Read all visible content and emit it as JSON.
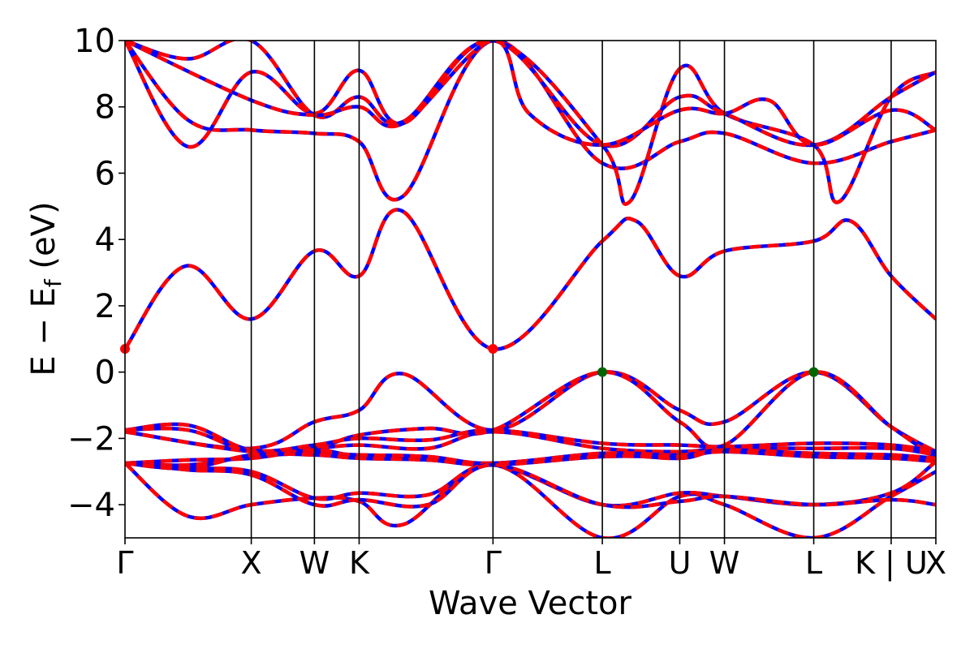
{
  "chart_data": {
    "type": "line",
    "title": "",
    "xlabel": "Wave Vector",
    "ylabel": "E − E",
    "ylabel_sub": "f",
    "ylabel_unit": " (eV)",
    "ylim": [
      -5,
      10
    ],
    "y_ticks": [
      {
        "value": 10,
        "label": "10"
      },
      {
        "value": 8,
        "label": "8"
      },
      {
        "value": 6,
        "label": "6"
      },
      {
        "value": 4,
        "label": "4"
      },
      {
        "value": 2,
        "label": "2"
      },
      {
        "value": 0,
        "label": "0"
      },
      {
        "value": -2,
        "label": "−2"
      },
      {
        "value": -4,
        "label": "−4"
      }
    ],
    "k_path": [
      {
        "label": "Γ",
        "k": 0.0
      },
      {
        "label": "X",
        "k": 1.0
      },
      {
        "label": "W",
        "k": 1.5
      },
      {
        "label": "K",
        "k": 1.854
      },
      {
        "label": "Γ",
        "k": 2.914
      },
      {
        "label": "L",
        "k": 3.78
      },
      {
        "label": "U",
        "k": 4.393
      },
      {
        "label": "W",
        "k": 4.747
      },
      {
        "label": "L",
        "k": 5.454
      },
      {
        "label": "K | U",
        "k": 6.067
      },
      {
        "label": "X",
        "k": 6.421
      }
    ],
    "xlim": [
      0,
      6.421
    ],
    "colors": {
      "band_outer": "#ff0000",
      "band_inner": "#0000ff",
      "vbm": "#006400",
      "cbm": "#ff0000",
      "kline": "#000000"
    },
    "extrema": [
      {
        "kind": "cbm",
        "k": 0.0,
        "energy": 0.7
      },
      {
        "kind": "cbm",
        "k": 2.914,
        "energy": 0.7
      },
      {
        "kind": "vbm",
        "k": 3.78,
        "energy": 0.0
      },
      {
        "kind": "vbm",
        "k": 5.454,
        "energy": 0.0
      }
    ],
    "series": [
      {
        "k": [
          0,
          0.48,
          1.0,
          1.5,
          1.854,
          2.2,
          2.914,
          3.78,
          4.05,
          4.393,
          4.747,
          5.454,
          5.75,
          6.067,
          6.421
        ],
        "energy": [
          0.7,
          3.2,
          1.6,
          3.65,
          2.9,
          4.85,
          0.7,
          3.95,
          4.55,
          2.9,
          3.65,
          3.95,
          4.55,
          2.9,
          1.6
        ]
      },
      {
        "k": [
          0,
          0.5,
          1.0,
          1.5,
          1.854,
          2.2,
          2.914,
          3.78,
          4.393,
          4.747,
          5.454,
          6.067,
          6.421
        ],
        "energy": [
          10.0,
          7.6,
          7.3,
          7.2,
          6.95,
          5.3,
          10.0,
          6.3,
          6.95,
          7.2,
          6.3,
          6.95,
          7.3
        ]
      },
      {
        "k": [
          0,
          0.5,
          1.0,
          1.5,
          1.854,
          2.2,
          2.914,
          3.78,
          4.0,
          4.393,
          4.747,
          5.454,
          5.66,
          6.067,
          6.421
        ],
        "energy": [
          10.0,
          6.8,
          9.05,
          7.8,
          9.1,
          7.5,
          10.0,
          6.85,
          5.15,
          9.15,
          7.8,
          6.85,
          5.15,
          8.3,
          9.05
        ]
      },
      {
        "k": [
          0,
          0.5,
          1.0,
          1.5,
          1.854,
          2.2,
          2.914,
          3.78,
          4.393,
          4.747,
          5.454,
          6.067,
          6.421
        ],
        "energy": [
          10.0,
          9.45,
          10.0,
          7.75,
          8.3,
          7.55,
          10.0,
          6.85,
          8.3,
          7.8,
          6.85,
          8.3,
          9.05
        ]
      },
      {
        "k": [
          0,
          1.0,
          1.5,
          1.854,
          2.2,
          2.914,
          3.2,
          3.78,
          4.393,
          4.747,
          5.1,
          5.454,
          6.067,
          6.421
        ],
        "energy": [
          10.0,
          8.2,
          7.75,
          8.0,
          7.5,
          10.0,
          7.8,
          6.85,
          7.9,
          7.8,
          8.2,
          6.85,
          7.9,
          7.3
        ]
      },
      {
        "k": [
          0,
          1.0,
          1.5,
          1.854,
          2.2,
          2.914,
          3.78,
          4.393,
          4.747,
          5.454,
          6.067,
          6.421
        ],
        "energy": [
          -1.8,
          -2.3,
          -1.5,
          -1.15,
          -0.05,
          -1.75,
          0.0,
          -1.15,
          -1.5,
          0.0,
          -1.65,
          -2.4
        ]
      },
      {
        "k": [
          0,
          1.0,
          1.5,
          1.854,
          2.4,
          2.914,
          3.78,
          4.393,
          4.747,
          5.454,
          6.067,
          6.421
        ],
        "energy": [
          -1.8,
          -2.4,
          -2.3,
          -1.9,
          -1.7,
          -1.75,
          0.0,
          -1.5,
          -2.2,
          0.0,
          -1.65,
          -2.6
        ]
      },
      {
        "k": [
          0,
          0.5,
          1.0,
          1.5,
          1.854,
          2.4,
          2.914,
          3.78,
          4.393,
          4.747,
          5.454,
          6.067,
          6.421
        ],
        "energy": [
          -1.75,
          -1.6,
          -2.35,
          -2.2,
          -2.0,
          -2.05,
          -1.75,
          -2.15,
          -2.2,
          -2.25,
          -2.15,
          -2.2,
          -2.4
        ]
      },
      {
        "k": [
          0,
          0.5,
          1.0,
          1.5,
          1.854,
          2.4,
          2.914,
          3.78,
          4.393,
          4.747,
          5.454,
          6.067,
          6.421
        ],
        "energy": [
          -1.75,
          -1.75,
          -2.4,
          -2.3,
          -2.2,
          -2.3,
          -1.8,
          -2.3,
          -2.4,
          -2.3,
          -2.3,
          -2.3,
          -2.5
        ]
      },
      {
        "k": [
          0,
          0.5,
          1.0,
          1.5,
          1.854,
          2.4,
          2.914,
          3.78,
          4.393,
          4.747,
          5.454,
          6.067,
          6.421
        ],
        "energy": [
          -2.75,
          -2.65,
          -2.6,
          -2.35,
          -2.55,
          -2.65,
          -2.75,
          -2.5,
          -2.6,
          -2.35,
          -2.5,
          -2.55,
          -2.65
        ]
      },
      {
        "k": [
          0,
          0.5,
          1.0,
          1.5,
          1.854,
          2.4,
          2.914,
          3.78,
          4.393,
          4.747,
          5.454,
          6.067,
          6.421
        ],
        "energy": [
          -2.75,
          -2.8,
          -2.55,
          -2.45,
          -2.5,
          -2.55,
          -2.75,
          -2.45,
          -2.5,
          -2.35,
          -2.45,
          -2.5,
          -2.6
        ]
      },
      {
        "k": [
          0,
          0.5,
          1.0,
          1.5,
          1.854,
          2.4,
          2.914,
          3.78,
          4.393,
          4.747,
          5.454,
          6.067,
          6.421
        ],
        "energy": [
          -2.75,
          -2.9,
          -2.5,
          -2.5,
          -2.6,
          -2.65,
          -2.8,
          -2.55,
          -2.55,
          -2.4,
          -2.55,
          -2.6,
          -2.7
        ]
      },
      {
        "k": [
          0,
          0.5,
          1.0,
          1.5,
          1.854,
          2.2,
          2.914,
          3.78,
          4.393,
          4.747,
          5.454,
          6.067,
          6.421
        ],
        "energy": [
          -2.75,
          -4.35,
          -4.0,
          -3.8,
          -3.9,
          -4.6,
          -2.8,
          -5.0,
          -3.75,
          -4.0,
          -5.0,
          -3.75,
          -3.0
        ]
      },
      {
        "k": [
          0,
          0.5,
          1.0,
          1.5,
          1.854,
          2.4,
          2.914,
          3.78,
          4.393,
          4.747,
          5.454,
          6.067,
          6.421
        ],
        "energy": [
          -2.75,
          -2.9,
          -3.0,
          -3.8,
          -3.65,
          -3.7,
          -2.8,
          -4.0,
          -3.65,
          -3.75,
          -4.0,
          -3.65,
          -2.7
        ]
      },
      {
        "k": [
          0,
          0.5,
          1.0,
          1.5,
          1.854,
          2.4,
          2.914,
          3.78,
          4.393,
          4.747,
          5.454,
          6.067,
          6.421
        ],
        "energy": [
          -2.75,
          -2.95,
          -3.1,
          -4.0,
          -3.85,
          -4.0,
          -2.8,
          -4.0,
          -3.9,
          -3.75,
          -4.0,
          -3.85,
          -4.0
        ]
      }
    ]
  }
}
